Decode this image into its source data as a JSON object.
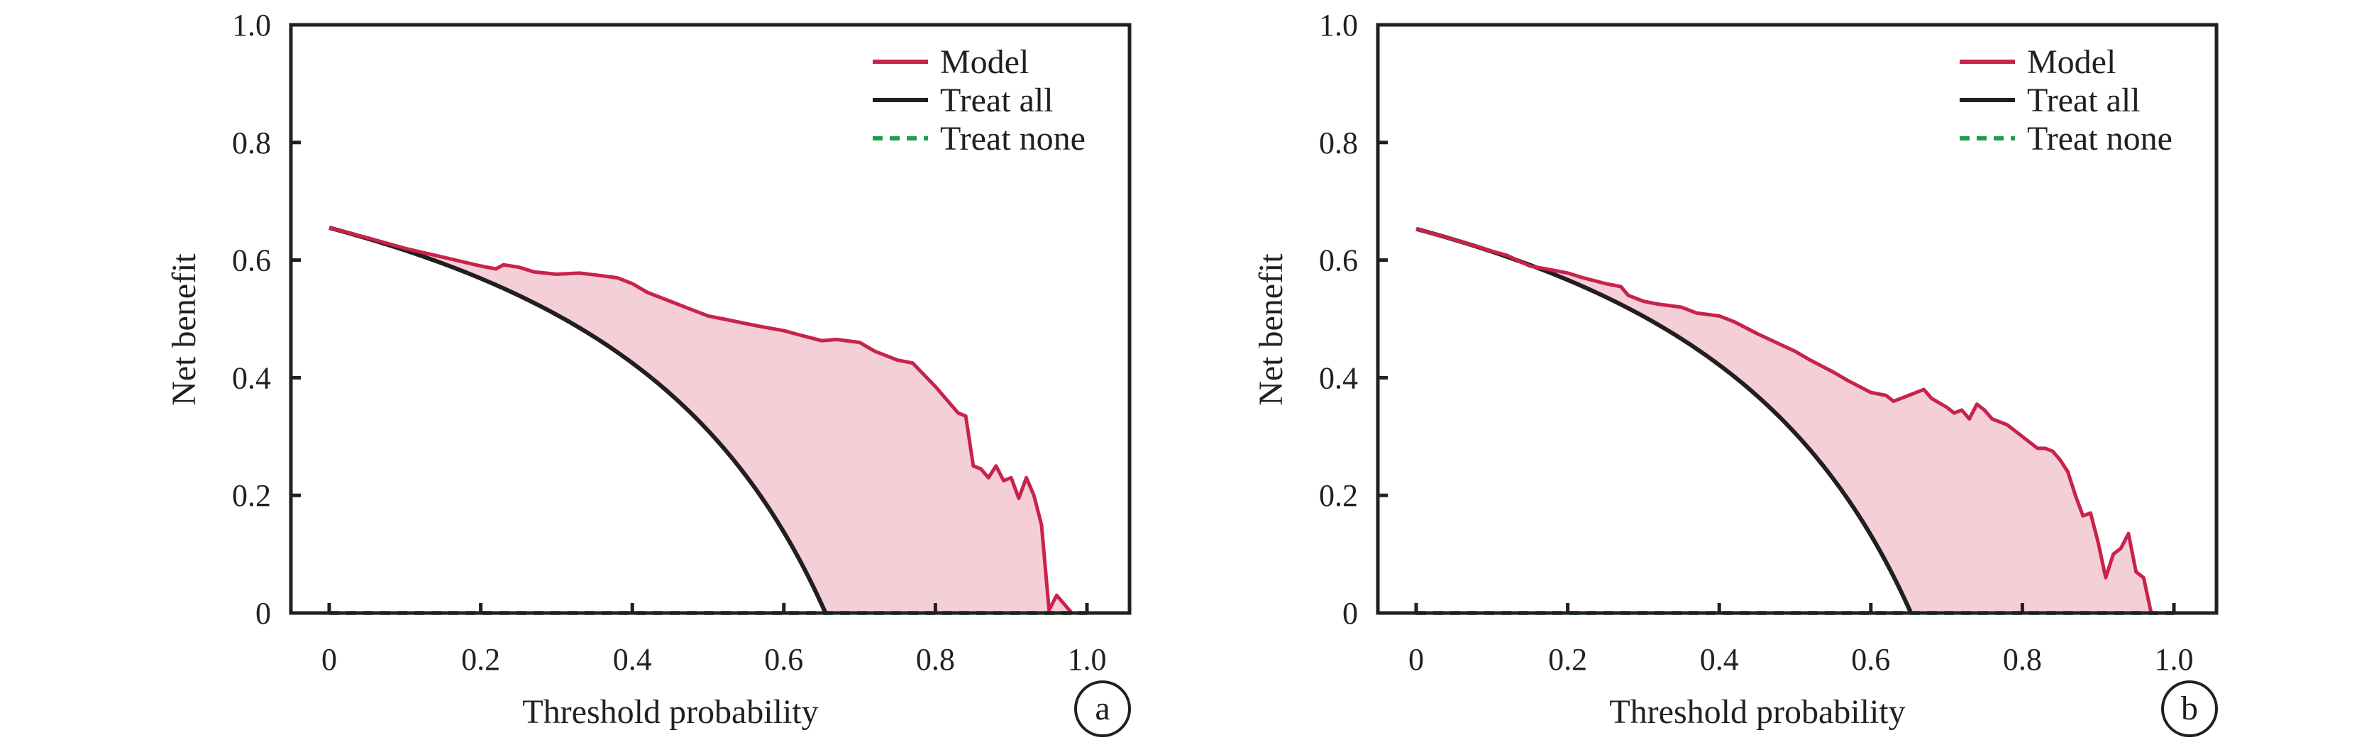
{
  "colors": {
    "model": "#c8234a",
    "model_fill": "#f4cfd8",
    "treat_all": "#231f20",
    "treat_none": "#1e9f4b",
    "axis": "#231f20"
  },
  "chart_data": [
    {
      "type": "line",
      "panel_label": "a",
      "xlabel": "Threshold  probability",
      "ylabel": "Net benefit",
      "xlim": [
        0,
        1.0
      ],
      "ylim": [
        0,
        1.0
      ],
      "xticks": [
        0,
        0.2,
        0.4,
        0.6,
        0.8,
        1.0
      ],
      "xtick_labels": [
        "0",
        "0.2",
        "0.4",
        "0.6",
        "0.8",
        "1.0"
      ],
      "yticks": [
        0,
        0.2,
        0.4,
        0.6,
        0.8,
        1.0
      ],
      "ytick_labels": [
        "0",
        "0.2",
        "0.4",
        "0.6",
        "0.8",
        "1.0"
      ],
      "grid": false,
      "legend_position": "top-right",
      "prevalence": 0.655,
      "series": [
        {
          "name": "Model",
          "style": "solid",
          "shaded": true,
          "x": [
            0,
            0.05,
            0.1,
            0.15,
            0.2,
            0.22,
            0.23,
            0.25,
            0.27,
            0.3,
            0.33,
            0.35,
            0.38,
            0.4,
            0.42,
            0.45,
            0.47,
            0.5,
            0.52,
            0.55,
            0.57,
            0.6,
            0.62,
            0.65,
            0.67,
            0.7,
            0.72,
            0.75,
            0.77,
            0.8,
            0.81,
            0.83,
            0.84,
            0.85,
            0.86,
            0.87,
            0.88,
            0.89,
            0.9,
            0.91,
            0.92,
            0.93,
            0.94,
            0.95,
            0.96,
            0.98
          ],
          "y": [
            0.655,
            0.638,
            0.62,
            0.605,
            0.59,
            0.585,
            0.592,
            0.588,
            0.58,
            0.576,
            0.578,
            0.575,
            0.57,
            0.56,
            0.545,
            0.53,
            0.52,
            0.505,
            0.5,
            0.492,
            0.487,
            0.48,
            0.473,
            0.463,
            0.465,
            0.46,
            0.445,
            0.43,
            0.425,
            0.385,
            0.37,
            0.34,
            0.335,
            0.25,
            0.245,
            0.23,
            0.25,
            0.225,
            0.23,
            0.195,
            0.23,
            0.2,
            0.15,
            0.005,
            0.03,
            0.0
          ]
        },
        {
          "name": "Treat all",
          "style": "solid",
          "formula": "prevalence - (1 - prevalence) * x / (1 - x)"
        },
        {
          "name": "Treat none",
          "style": "dashed",
          "x": [
            0,
            1.0
          ],
          "y": [
            0,
            0
          ]
        }
      ]
    },
    {
      "type": "line",
      "panel_label": "b",
      "xlabel": "Threshold  probability",
      "ylabel": "Net benefit",
      "xlim": [
        0,
        1.0
      ],
      "ylim": [
        0,
        1.0
      ],
      "xticks": [
        0,
        0.2,
        0.4,
        0.6,
        0.8,
        1.0
      ],
      "xtick_labels": [
        "0",
        "0.2",
        "0.4",
        "0.6",
        "0.8",
        "1.0"
      ],
      "yticks": [
        0,
        0.2,
        0.4,
        0.6,
        0.8,
        1.0
      ],
      "ytick_labels": [
        "0",
        "0.2",
        "0.4",
        "0.6",
        "0.8",
        "1.0"
      ],
      "grid": false,
      "legend_position": "top-right",
      "prevalence": 0.653,
      "series": [
        {
          "name": "Model",
          "style": "solid",
          "shaded": true,
          "x": [
            0,
            0.05,
            0.1,
            0.12,
            0.15,
            0.18,
            0.2,
            0.22,
            0.25,
            0.27,
            0.28,
            0.3,
            0.32,
            0.35,
            0.37,
            0.4,
            0.42,
            0.45,
            0.5,
            0.52,
            0.55,
            0.57,
            0.6,
            0.62,
            0.63,
            0.65,
            0.67,
            0.68,
            0.7,
            0.71,
            0.72,
            0.73,
            0.74,
            0.75,
            0.76,
            0.78,
            0.8,
            0.82,
            0.83,
            0.84,
            0.85,
            0.86,
            0.87,
            0.88,
            0.89,
            0.9,
            0.91,
            0.92,
            0.93,
            0.94,
            0.95,
            0.96,
            0.97
          ],
          "y": [
            0.653,
            0.635,
            0.615,
            0.608,
            0.59,
            0.583,
            0.578,
            0.57,
            0.56,
            0.555,
            0.54,
            0.53,
            0.525,
            0.52,
            0.51,
            0.505,
            0.495,
            0.475,
            0.445,
            0.43,
            0.41,
            0.395,
            0.375,
            0.37,
            0.36,
            0.37,
            0.38,
            0.365,
            0.35,
            0.34,
            0.345,
            0.33,
            0.355,
            0.345,
            0.33,
            0.32,
            0.3,
            0.28,
            0.28,
            0.275,
            0.26,
            0.24,
            0.2,
            0.165,
            0.17,
            0.12,
            0.06,
            0.1,
            0.11,
            0.135,
            0.07,
            0.06,
            0.0
          ]
        },
        {
          "name": "Treat all",
          "style": "solid",
          "formula": "prevalence - (1 - prevalence) * x / (1 - x)"
        },
        {
          "name": "Treat none",
          "style": "dashed",
          "x": [
            0,
            1.0
          ],
          "y": [
            0,
            0
          ]
        }
      ]
    }
  ]
}
